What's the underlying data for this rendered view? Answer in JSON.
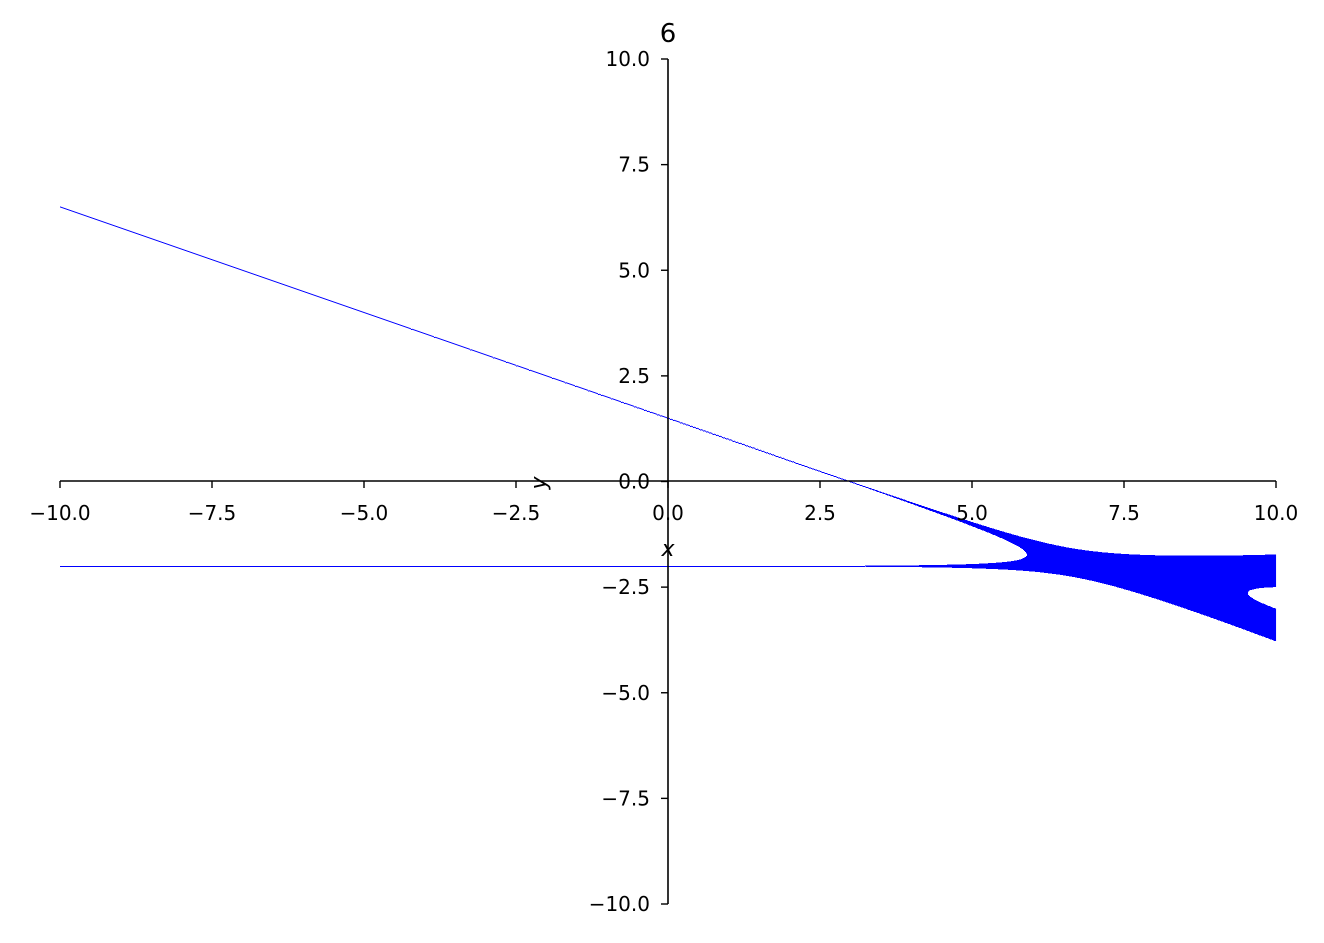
{
  "chart_data": {
    "type": "line",
    "title": "6",
    "xlabel": "x",
    "ylabel": "y",
    "xlim": [
      -10,
      10
    ],
    "ylim": [
      -10,
      10
    ],
    "xticks": [
      "−10.0",
      "−7.5",
      "−5.0",
      "−2.5",
      "0.0",
      "2.5",
      "5.0",
      "7.5",
      "10.0"
    ],
    "yticks": [
      "−10.0",
      "−7.5",
      "−5.0",
      "−2.5",
      "0.0",
      "2.5",
      "5.0",
      "7.5",
      "10.0"
    ],
    "xtick_values": [
      -10,
      -7.5,
      -5,
      -2.5,
      0,
      2.5,
      5,
      7.5,
      10
    ],
    "ytick_values": [
      -10,
      -7.5,
      -5,
      -2.5,
      0,
      2.5,
      5,
      7.5,
      10
    ],
    "grid": false,
    "spines": "centered at origin",
    "color": "#0000ff",
    "curves": [
      {
        "description_points": [
          [
            -10,
            6.5
          ],
          [
            0,
            1.5
          ],
          [
            3,
            0
          ],
          [
            10,
            -3.5
          ]
        ]
      },
      {
        "description_points": [
          [
            -10,
            -2
          ],
          [
            10,
            -2
          ]
        ]
      }
    ]
  }
}
